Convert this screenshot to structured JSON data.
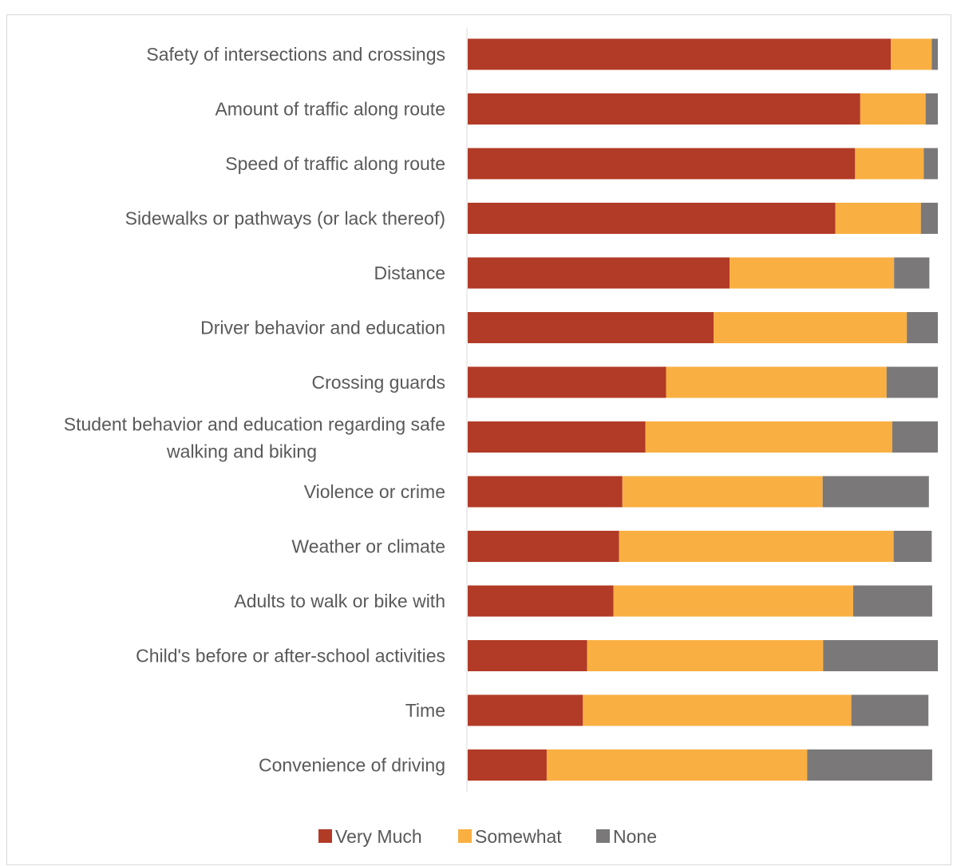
{
  "chart_data": {
    "type": "bar",
    "orientation": "horizontal",
    "stacked": true,
    "percent_stacked": true,
    "categories": [
      "Safety of intersections and crossings",
      "Amount of traffic along route",
      "Speed of traffic along route",
      "Sidewalks or pathways (or lack thereof)",
      "Distance",
      "Driver behavior and education",
      "Crossing guards",
      "Student behavior and education regarding safe walking and biking",
      "Violence or crime",
      "Weather or climate",
      "Adults to walk or bike with",
      "Child's before or after-school activities",
      "Time",
      "Convenience of driving"
    ],
    "series": [
      {
        "name": "Very Much",
        "color": "#b13b26",
        "values": [
          90.0,
          83.5,
          82.4,
          78.2,
          55.7,
          52.3,
          42.2,
          37.8,
          32.9,
          32.2,
          31.0,
          25.4,
          24.5,
          16.8
        ]
      },
      {
        "name": "Somewhat",
        "color": "#f9af41",
        "values": [
          8.7,
          13.9,
          14.6,
          18.2,
          35.0,
          41.1,
          46.9,
          52.5,
          42.6,
          58.4,
          51.0,
          50.2,
          57.1,
          55.4
        ]
      },
      {
        "name": "None",
        "color": "#7b7879",
        "values": [
          1.3,
          2.6,
          3.0,
          3.6,
          7.5,
          6.6,
          10.9,
          9.7,
          22.6,
          8.1,
          16.8,
          24.4,
          16.4,
          26.6
        ]
      }
    ],
    "xlim": [
      0,
      100
    ],
    "grid": false,
    "legend_position": "bottom"
  }
}
